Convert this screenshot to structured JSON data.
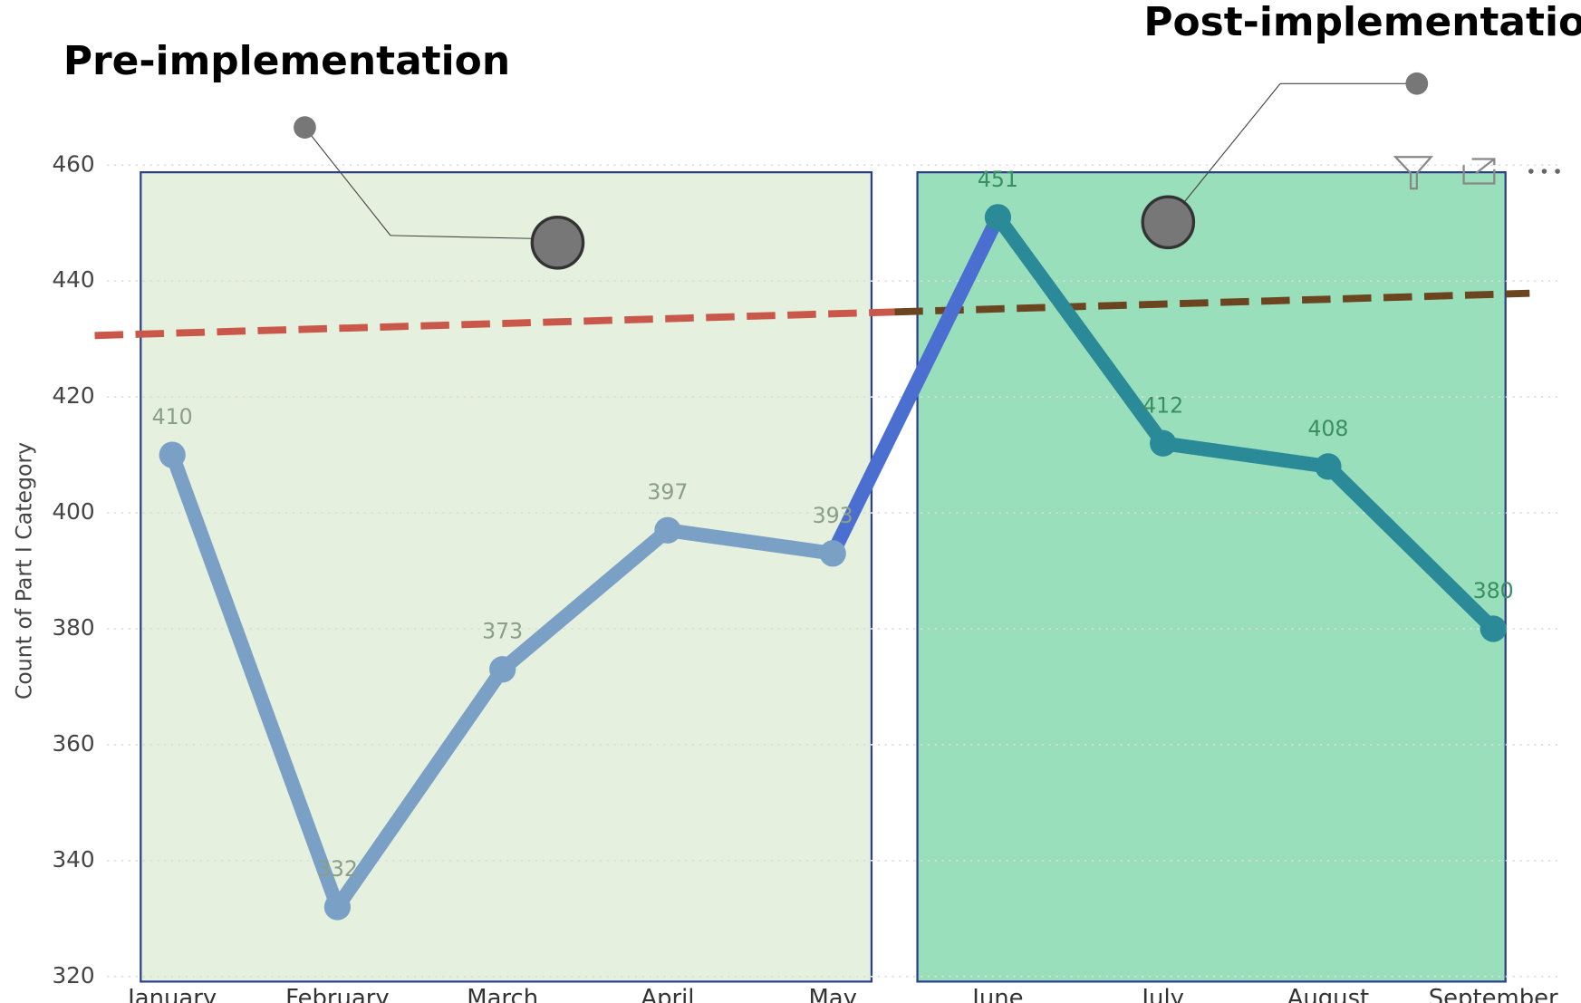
{
  "chart_data": {
    "type": "line",
    "y_label": "Count of Part I Category",
    "categories": [
      "January",
      "February",
      "March",
      "April",
      "May",
      "June",
      "July",
      "August",
      "September"
    ],
    "series": [
      {
        "values": [
          410,
          332,
          373,
          397,
          393,
          451,
          412,
          408,
          380
        ]
      }
    ],
    "bridge_color": "#4a6fd0",
    "trend_values": [
      431,
      437.7
    ],
    "trend_colors": [
      "#c9584a",
      "#6b4420"
    ],
    "ylim": [
      320,
      460
    ],
    "yticks": [
      320,
      340,
      360,
      380,
      400,
      420,
      440,
      460
    ],
    "grid": true,
    "annotations": [
      {
        "label": "Pre-implementation",
        "from": "January",
        "to": "May",
        "fill": "#e6f0df",
        "line_color": "#7ba0c6",
        "label_color": "#8a9e8a"
      },
      {
        "label": "Post-implementation",
        "from": "June",
        "to": "September",
        "fill": "#9adfbb",
        "line_color": "#2a8a98",
        "label_color": "#3a8f62"
      }
    ]
  }
}
